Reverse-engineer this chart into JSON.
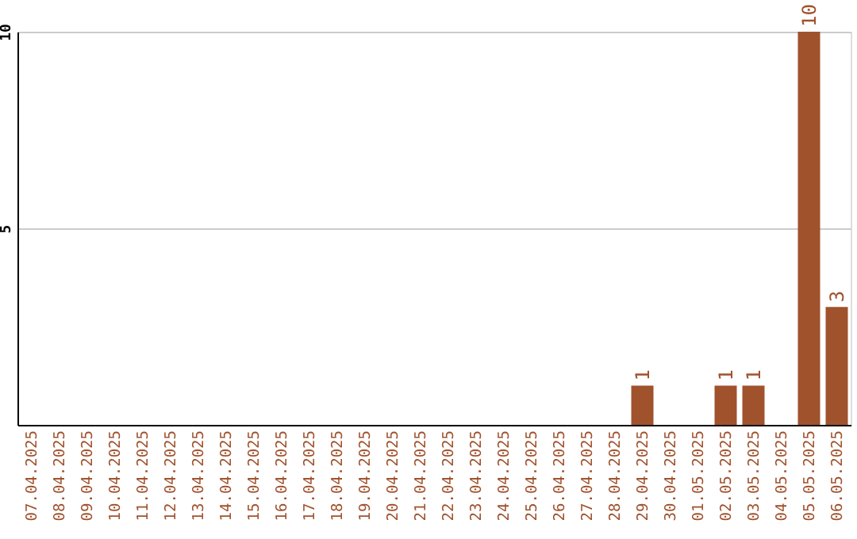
{
  "chart_data": {
    "type": "bar",
    "categories": [
      "07.04.2025",
      "08.04.2025",
      "09.04.2025",
      "10.04.2025",
      "11.04.2025",
      "12.04.2025",
      "13.04.2025",
      "14.04.2025",
      "15.04.2025",
      "16.04.2025",
      "17.04.2025",
      "18.04.2025",
      "19.04.2025",
      "20.04.2025",
      "21.04.2025",
      "22.04.2025",
      "23.04.2025",
      "24.04.2025",
      "25.04.2025",
      "26.04.2025",
      "27.04.2025",
      "28.04.2025",
      "29.04.2025",
      "30.04.2025",
      "01.05.2025",
      "02.05.2025",
      "03.05.2025",
      "04.05.2025",
      "05.05.2025",
      "06.05.2025"
    ],
    "values": [
      0,
      0,
      0,
      0,
      0,
      0,
      0,
      0,
      0,
      0,
      0,
      0,
      0,
      0,
      0,
      0,
      0,
      0,
      0,
      0,
      0,
      0,
      1,
      0,
      0,
      1,
      1,
      0,
      10,
      3
    ],
    "value_labels": [
      null,
      null,
      null,
      null,
      null,
      null,
      null,
      null,
      null,
      null,
      null,
      null,
      null,
      null,
      null,
      null,
      null,
      null,
      null,
      null,
      null,
      null,
      "1",
      null,
      null,
      "1",
      "1",
      null,
      "10",
      "3"
    ],
    "color": "#a0522d",
    "ylim": [
      0,
      10
    ],
    "yticks": [
      5,
      10
    ],
    "grid": "y"
  }
}
